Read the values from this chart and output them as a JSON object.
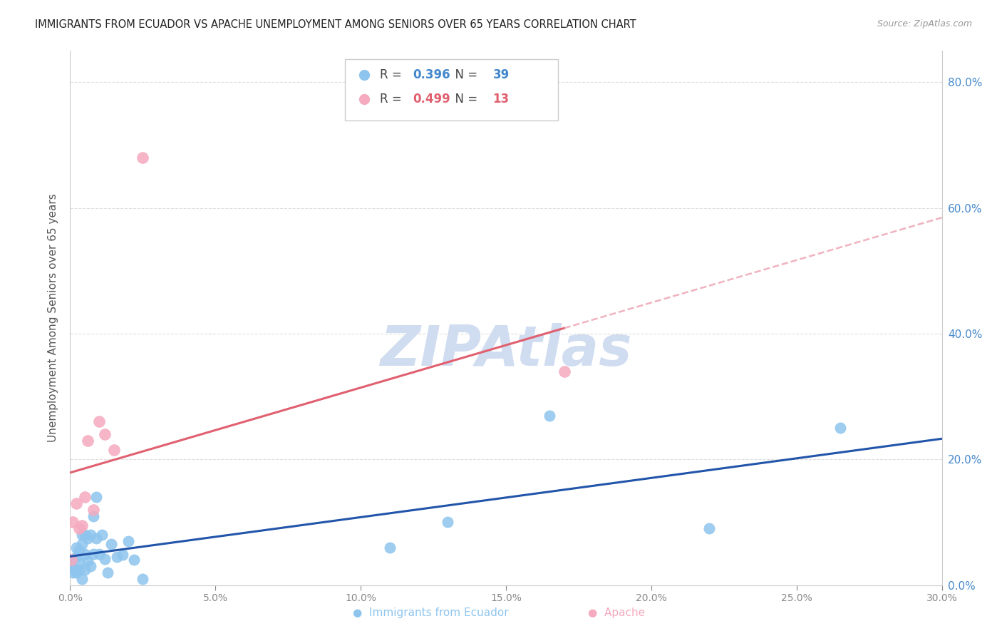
{
  "title": "IMMIGRANTS FROM ECUADOR VS APACHE UNEMPLOYMENT AMONG SENIORS OVER 65 YEARS CORRELATION CHART",
  "source": "Source: ZipAtlas.com",
  "ylabel": "Unemployment Among Seniors over 65 years",
  "xlim": [
    0.0,
    0.3
  ],
  "ylim": [
    0.0,
    0.85
  ],
  "xticks": [
    0.0,
    0.05,
    0.1,
    0.15,
    0.2,
    0.25,
    0.3
  ],
  "yticks_right": [
    0.0,
    0.2,
    0.4,
    0.6,
    0.8
  ],
  "ecuador_x": [
    0.0005,
    0.001,
    0.001,
    0.0015,
    0.002,
    0.002,
    0.002,
    0.003,
    0.003,
    0.003,
    0.004,
    0.004,
    0.004,
    0.005,
    0.005,
    0.005,
    0.006,
    0.006,
    0.007,
    0.007,
    0.008,
    0.008,
    0.009,
    0.009,
    0.01,
    0.011,
    0.012,
    0.013,
    0.014,
    0.016,
    0.018,
    0.02,
    0.022,
    0.025,
    0.11,
    0.13,
    0.165,
    0.22,
    0.265
  ],
  "ecuador_y": [
    0.03,
    0.02,
    0.04,
    0.025,
    0.02,
    0.045,
    0.06,
    0.025,
    0.055,
    0.035,
    0.01,
    0.065,
    0.08,
    0.025,
    0.08,
    0.05,
    0.038,
    0.075,
    0.03,
    0.08,
    0.11,
    0.05,
    0.14,
    0.075,
    0.05,
    0.08,
    0.042,
    0.02,
    0.065,
    0.045,
    0.048,
    0.07,
    0.04,
    0.01,
    0.06,
    0.1,
    0.27,
    0.09,
    0.25
  ],
  "apache_x": [
    0.0005,
    0.001,
    0.002,
    0.003,
    0.004,
    0.005,
    0.006,
    0.008,
    0.01,
    0.012,
    0.015,
    0.025,
    0.17
  ],
  "apache_y": [
    0.04,
    0.1,
    0.13,
    0.09,
    0.095,
    0.14,
    0.23,
    0.12,
    0.26,
    0.24,
    0.215,
    0.68,
    0.34
  ],
  "ecuador_color": "#8EC5EE",
  "apache_color": "#F5AABF",
  "ecuador_line_color": "#2255AA",
  "apache_line_color": "#E06070",
  "apache_dash_color": "#EBA0B0",
  "ecuador_R": 0.396,
  "ecuador_N": 39,
  "apache_R": 0.499,
  "apache_N": 13,
  "watermark": "ZIPAtlas",
  "watermark_color": "#D0DCF0",
  "background_color": "#FFFFFF",
  "grid_color": "#DDDDDD",
  "legend_label1": "Immigrants from Ecuador",
  "legend_label2": "Apache"
}
